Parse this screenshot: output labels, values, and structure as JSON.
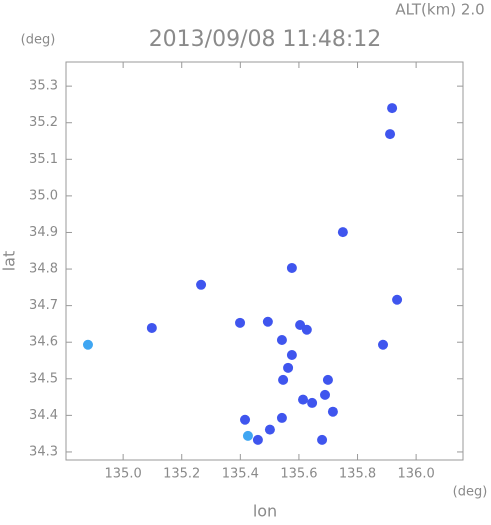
{
  "chart_data": {
    "type": "scatter",
    "title": "2013/09/08 11:48:12",
    "altitude_label": "ALT(km) 2.0",
    "y_unit": "(deg)",
    "x_unit": "(deg)",
    "xlabel": "lon",
    "ylabel": "lat",
    "xlim": [
      134.805,
      136.16
    ],
    "ylim": [
      34.278,
      35.366
    ],
    "xticks": [
      {
        "value": 135.0,
        "label": "135.0"
      },
      135.2,
      135.4,
      135.6,
      135.8,
      {
        "value": 136.0,
        "label": "136.0"
      }
    ],
    "yticks": [
      34.3,
      34.4,
      34.5,
      34.6,
      34.7,
      34.8,
      34.9,
      {
        "value": 35.0,
        "label": "35.0"
      },
      35.1,
      35.2,
      35.3
    ],
    "series": [
      {
        "color": "#3f55ee",
        "x": [
          135.918,
          135.911,
          135.75,
          135.576,
          135.266,
          135.098,
          135.399,
          135.494,
          135.542,
          135.576,
          135.604,
          135.627,
          135.546,
          135.563,
          135.887,
          135.935,
          135.699,
          135.689,
          135.614,
          135.645,
          135.716,
          135.679,
          135.416,
          135.46,
          135.501,
          135.542
        ],
        "y": [
          35.24,
          35.169,
          34.901,
          34.803,
          34.757,
          34.639,
          34.653,
          34.656,
          34.606,
          34.565,
          34.647,
          34.634,
          34.497,
          34.53,
          34.593,
          34.716,
          34.497,
          34.456,
          34.443,
          34.434,
          34.41,
          34.333,
          34.388,
          34.333,
          34.361,
          34.393
        ]
      },
      {
        "color": "#3fa6f2",
        "x": [
          134.88,
          135.426
        ],
        "y": [
          34.593,
          34.344
        ]
      }
    ]
  }
}
